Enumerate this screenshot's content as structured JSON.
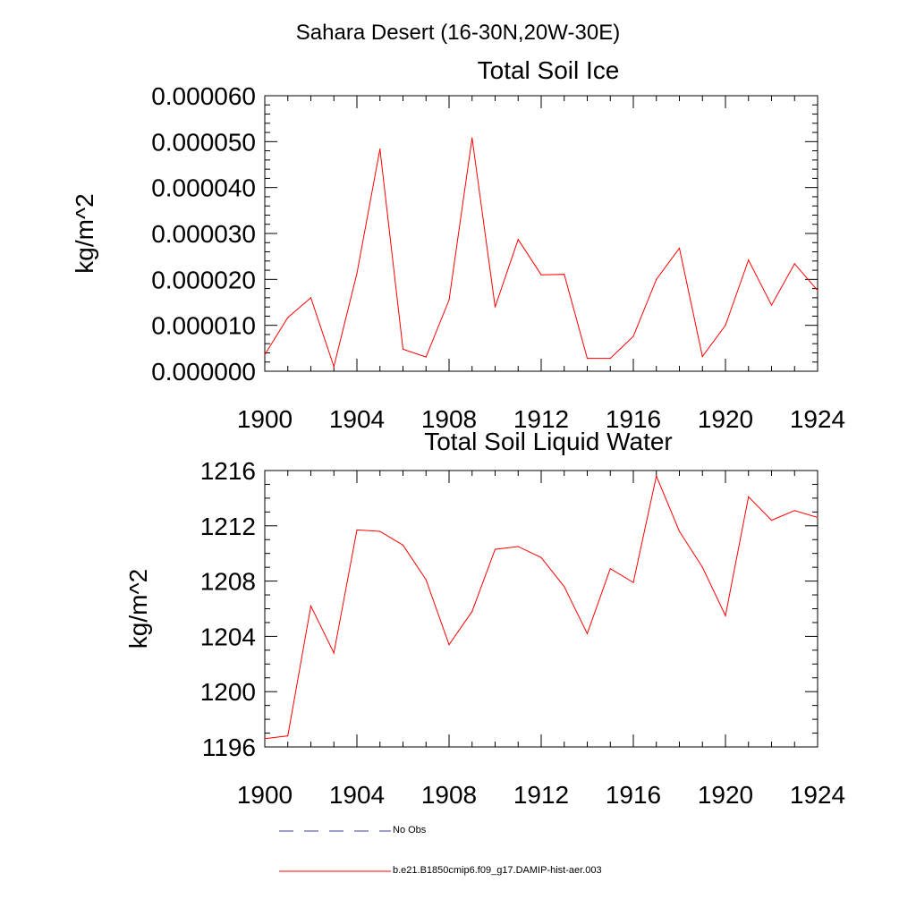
{
  "header": {
    "title": "Sahara Desert (16-30N,20W-30E)"
  },
  "chart_data": [
    {
      "type": "line",
      "title": "Total Soil Ice",
      "xlabel": "",
      "ylabel": "kg/m^2",
      "xlim": [
        1900,
        1924
      ],
      "ylim": [
        0.0,
        6e-05
      ],
      "x_ticks": [
        1900,
        1904,
        1908,
        1912,
        1916,
        1920,
        1924
      ],
      "y_ticks": [
        0.0,
        1e-05,
        2e-05,
        3e-05,
        4e-05,
        5e-05,
        6e-05
      ],
      "y_tick_labels": [
        "0.000000",
        "0.000010",
        "0.000020",
        "0.000030",
        "0.000040",
        "0.000050",
        "0.000060"
      ],
      "x_tick_labels": [
        "1900",
        "1904",
        "1908",
        "1912",
        "1916",
        "1920",
        "1924"
      ],
      "grid": false,
      "series": [
        {
          "name": "b.e21.B1850cmip6.f09_g17.DAMIP-hist-aer.003",
          "color": "#ff0000",
          "x": [
            1900,
            1901,
            1902,
            1903,
            1904,
            1905,
            1906,
            1907,
            1908,
            1909,
            1910,
            1911,
            1912,
            1913,
            1914,
            1915,
            1916,
            1917,
            1918,
            1919,
            1920,
            1921,
            1922,
            1923,
            1924
          ],
          "y": [
            3.6e-06,
            1.17e-05,
            1.6e-05,
            1e-06,
            2.13e-05,
            4.84e-05,
            4.8e-06,
            3.1e-06,
            1.55e-05,
            5.08e-05,
            1.4e-05,
            2.87e-05,
            2.1e-05,
            2.11e-05,
            2.8e-06,
            2.8e-06,
            7.6e-06,
            2e-05,
            2.68e-05,
            3.2e-06,
            1e-05,
            2.42e-05,
            1.44e-05,
            2.34e-05,
            1.76e-05
          ]
        }
      ]
    },
    {
      "type": "line",
      "title": "Total Soil Liquid Water",
      "xlabel": "",
      "ylabel": "kg/m^2",
      "xlim": [
        1900,
        1924
      ],
      "ylim": [
        1196,
        1216
      ],
      "x_ticks": [
        1900,
        1904,
        1908,
        1912,
        1916,
        1920,
        1924
      ],
      "y_ticks": [
        1196,
        1200,
        1204,
        1208,
        1212,
        1216
      ],
      "y_tick_labels": [
        "1196",
        "1200",
        "1204",
        "1208",
        "1212",
        "1216"
      ],
      "x_tick_labels": [
        "1900",
        "1904",
        "1908",
        "1912",
        "1916",
        "1920",
        "1924"
      ],
      "grid": false,
      "series": [
        {
          "name": "b.e21.B1850cmip6.f09_g17.DAMIP-hist-aer.003",
          "color": "#ff0000",
          "x": [
            1900,
            1901,
            1902,
            1903,
            1904,
            1905,
            1906,
            1907,
            1908,
            1909,
            1910,
            1911,
            1912,
            1913,
            1914,
            1915,
            1916,
            1917,
            1918,
            1919,
            1920,
            1921,
            1922,
            1923,
            1924
          ],
          "y": [
            1196.6,
            1196.8,
            1206.2,
            1202.8,
            1211.7,
            1211.6,
            1210.6,
            1208.1,
            1203.4,
            1205.8,
            1210.3,
            1210.5,
            1209.7,
            1207.6,
            1204.2,
            1208.9,
            1207.9,
            1215.6,
            1211.6,
            1209.0,
            1205.5,
            1214.1,
            1212.4,
            1213.1,
            1212.6
          ]
        }
      ]
    }
  ],
  "legend": {
    "placement": "bottom",
    "items": [
      {
        "label": "No Obs",
        "style": "dashed",
        "color": "#3f3f8f"
      },
      {
        "label": "b.e21.B1850cmip6.f09_g17.DAMIP-hist-aer.003",
        "style": "solid",
        "color": "#ff0000"
      }
    ]
  }
}
